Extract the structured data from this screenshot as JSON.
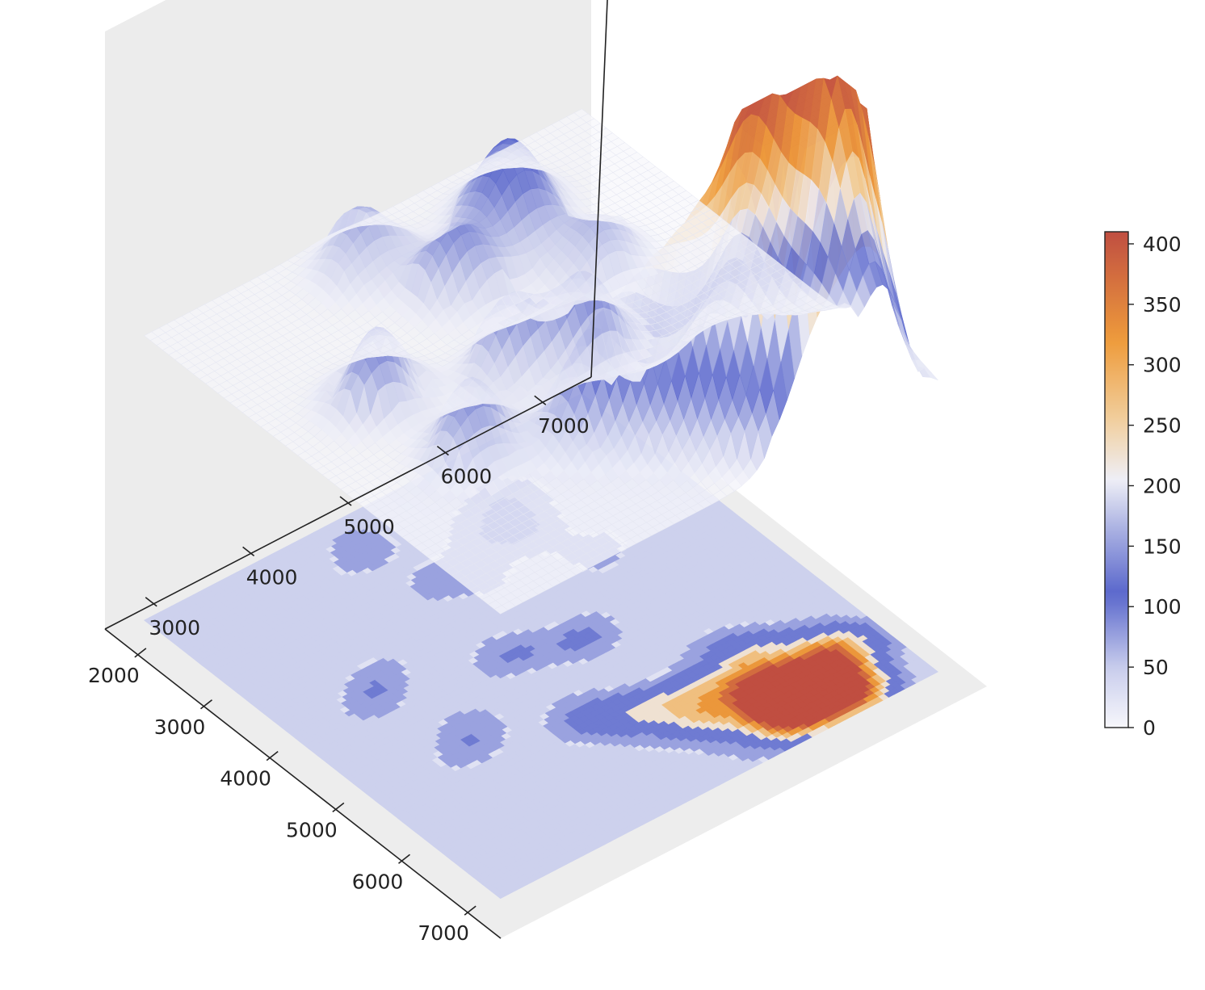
{
  "chart_data": {
    "type": "surface3d",
    "title": "",
    "x_axis": {
      "label": "",
      "range": [
        1500,
        7500
      ],
      "ticks": [
        2000,
        3000,
        4000,
        5000,
        6000,
        7000
      ],
      "tick_labels": [
        "2000",
        "3000",
        "4000",
        "5000",
        "6000",
        "7000"
      ]
    },
    "y_axis": {
      "label": "",
      "range": [
        2500,
        7500
      ],
      "ticks": [
        3000,
        4000,
        5000,
        6000,
        7000
      ],
      "tick_labels": [
        "3000",
        "4000",
        "5000",
        "6000",
        "7000"
      ]
    },
    "z_axis": {
      "label": "",
      "range": [
        -420,
        420
      ],
      "tick_labels": []
    },
    "colorbar": {
      "range": [
        0,
        410
      ],
      "ticks": [
        0,
        50,
        100,
        150,
        200,
        250,
        300,
        350,
        400
      ],
      "tick_labels": [
        "0",
        "50",
        "100",
        "150",
        "200",
        "250",
        "300",
        "350",
        "400"
      ],
      "colormap": [
        "#f7f7fb",
        "#c9cdec",
        "#5a67cc",
        "#aab1e2",
        "#eeeef6",
        "#f1cf9e",
        "#ee9b3b",
        "#c04e41"
      ]
    },
    "surface": {
      "grid_x": [
        1800,
        7200
      ],
      "grid_y": [
        2700,
        7200
      ],
      "peaks": [
        {
          "x": 2600,
          "y": 5900,
          "value": 110
        },
        {
          "x": 3000,
          "y": 5600,
          "value": 100
        },
        {
          "x": 3200,
          "y": 5000,
          "value": 95
        },
        {
          "x": 2400,
          "y": 4600,
          "value": 90
        },
        {
          "x": 3700,
          "y": 6000,
          "value": 85
        },
        {
          "x": 4000,
          "y": 3600,
          "value": 105
        },
        {
          "x": 5200,
          "y": 3800,
          "value": 110
        },
        {
          "x": 4500,
          "y": 4700,
          "value": 95
        },
        {
          "x": 4600,
          "y": 5300,
          "value": 95
        },
        {
          "x": 5700,
          "y": 4700,
          "value": 130
        },
        {
          "x": 5900,
          "y": 5100,
          "value": 150
        },
        {
          "x": 6000,
          "y": 5600,
          "value": 140
        },
        {
          "x": 6400,
          "y": 5400,
          "value": 200
        },
        {
          "x": 6200,
          "y": 6000,
          "value": 250
        },
        {
          "x": 6600,
          "y": 6000,
          "value": 300
        },
        {
          "x": 6800,
          "y": 6300,
          "value": 380
        },
        {
          "x": 6500,
          "y": 6500,
          "value": 350
        },
        {
          "x": 6900,
          "y": 5900,
          "value": 250
        },
        {
          "x": 6300,
          "y": 6800,
          "value": 200
        },
        {
          "x": 7000,
          "y": 6600,
          "value": 180
        },
        {
          "x": 5800,
          "y": 6200,
          "value": 150
        }
      ],
      "offset_contour_level": -400,
      "contour_levels": [
        0,
        50,
        100,
        200,
        250,
        300,
        350,
        400
      ]
    }
  }
}
